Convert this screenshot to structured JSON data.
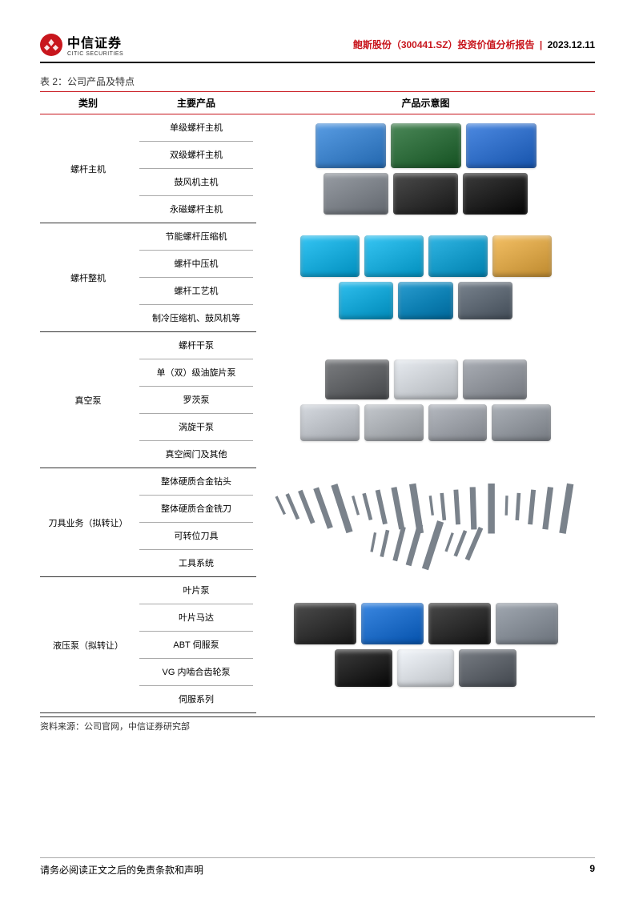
{
  "header": {
    "logo_cn": "中信证券",
    "logo_en": "CITIC SECURITIES",
    "title_red": "鲍斯股份（300441.SZ）投资价值分析报告",
    "title_date": "2023.12.11"
  },
  "table": {
    "caption": "表 2：公司产品及特点",
    "headers": [
      "类别",
      "主要产品",
      "产品示意图"
    ],
    "groups": [
      {
        "category": "螺杆主机",
        "products": [
          "单级螺杆主机",
          "双级螺杆主机",
          "鼓风机主机",
          "永磁螺杆主机"
        ],
        "image_colors_row1": [
          "#3b7fc6",
          "#2d6a3a",
          "#2f6cc4"
        ],
        "image_colors_row2": [
          "#7a7f86",
          "#2e2e2e",
          "#1e1e1e"
        ],
        "device_size": [
          88,
          56
        ]
      },
      {
        "category": "螺杆整机",
        "products": [
          "节能螺杆压缩机",
          "螺杆中压机",
          "螺杆工艺机",
          "制冷压缩机、鼓风机等"
        ],
        "image_colors_row1": [
          "#17a7d6",
          "#1aa8d6",
          "#1498c6",
          "#d6a247"
        ],
        "image_colors_row2": [
          "#13a1d0",
          "#0d7fb2",
          "#5b6570"
        ],
        "device_size": [
          74,
          52
        ]
      },
      {
        "category": "真空泵",
        "products": [
          "螺杆干泵",
          "单（双）级油旋片泵",
          "罗茨泵",
          "涡旋干泵",
          "真空阀门及其他"
        ],
        "image_colors_row1": [
          "#5d5f62",
          "#c9cdd2",
          "#8c9097"
        ],
        "image_colors_row2": [
          "#b8bcc2",
          "#a7abb0",
          "#989ca3",
          "#8e939a"
        ],
        "device_size": [
          80,
          50
        ]
      },
      {
        "category": "刀具业务（拟转让）",
        "products": [
          "整体硬质合金钻头",
          "整体硬质合金铣刀",
          "可转位刀具",
          "工具系统"
        ],
        "tool_color": "#7a828b",
        "tool_count": 28
      },
      {
        "category": "液压泵（拟转让）",
        "products": [
          "叶片泵",
          "叶片马达",
          "ABT 伺服泵",
          "VG 内啮合齿轮泵",
          "伺服系列"
        ],
        "image_colors_row1": [
          "#2f2f2f",
          "#1d6ac4",
          "#2b2b2b",
          "#838a93"
        ],
        "image_colors_row2": [
          "#1f1f1f",
          "#d4d8dd",
          "#5a5f66"
        ],
        "device_size": [
          78,
          52
        ]
      }
    ],
    "source": "资料来源：公司官网，中信证券研究部"
  },
  "footer": {
    "disclaimer": "请务必阅读正文之后的免责条款和声明",
    "page_number": "9"
  },
  "style": {
    "accent": "#c8161d",
    "text": "#323232",
    "rule": "#333333"
  }
}
